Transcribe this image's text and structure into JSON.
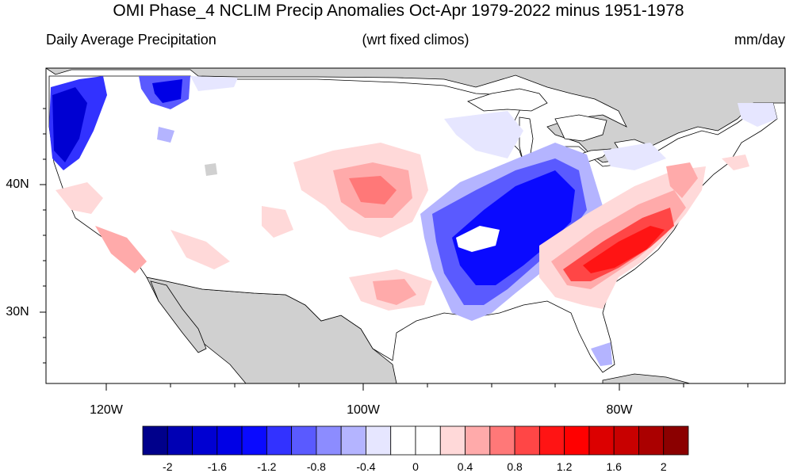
{
  "header": {
    "title": "OMI Phase_4 NCLIM Precip Anomalies Oct-Apr 1979-2022 minus 1951-1978",
    "left_label": "Daily Average Precipitation",
    "center_label": "(wrt fixed climos)",
    "right_label": "mm/day"
  },
  "map": {
    "lat_labels": [
      "40N",
      "30N"
    ],
    "lon_labels": [
      "120W",
      "100W",
      "80W"
    ],
    "land_color": "#d0d0d0",
    "ocean_color": "#ffffff"
  },
  "colorbar": {
    "colors": [
      "#00008b",
      "#0000b4",
      "#0000d2",
      "#0000e6",
      "#0a0aff",
      "#3232ff",
      "#5a5aff",
      "#8c8cff",
      "#b4b4ff",
      "#e6e6ff",
      "#ffffff",
      "#ffffff",
      "#ffd9d9",
      "#ffaaaa",
      "#ff7878",
      "#ff4646",
      "#ff1414",
      "#ff0000",
      "#dc0000",
      "#c80000",
      "#aa0000",
      "#8b0000"
    ],
    "tick_labels": [
      "-2",
      "-1.6",
      "-1.2",
      "-0.8",
      "-0.4",
      "0",
      "0.4",
      "0.8",
      "1.2",
      "1.6",
      "2"
    ]
  }
}
